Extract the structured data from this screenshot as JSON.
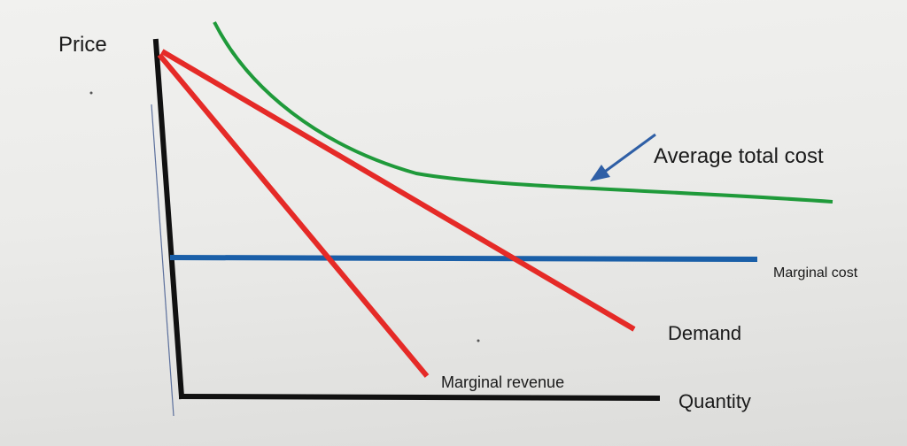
{
  "diagram": {
    "axes": {
      "y_label": "Price",
      "x_label": "Quantity"
    },
    "curves": [
      {
        "id": "average-total-cost",
        "label": "Average total cost",
        "color": "#1f9a3a"
      },
      {
        "id": "marginal-cost",
        "label": "Marginal cost",
        "color": "#1a5fa8"
      },
      {
        "id": "demand",
        "label": "Demand",
        "color": "#e52a27"
      },
      {
        "id": "marginal-revenue",
        "label": "Marginal revenue",
        "color": "#e52a27"
      }
    ],
    "colors": {
      "axis": "#111111",
      "arrow": "#2f5fa6"
    }
  }
}
